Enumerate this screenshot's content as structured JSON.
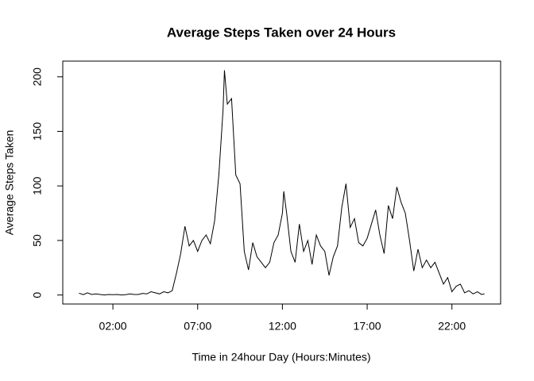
{
  "chart_data": {
    "type": "line",
    "title": "Average Steps Taken over 24 Hours",
    "x_label": "Time in 24hour Day (Hours:Minutes)",
    "y_label": "Average Steps Taken",
    "x": [
      0,
      0.25,
      0.5,
      0.75,
      1,
      1.25,
      1.5,
      1.75,
      2,
      2.25,
      2.5,
      2.75,
      3,
      3.25,
      3.5,
      3.75,
      4,
      4.25,
      4.5,
      4.75,
      5,
      5.25,
      5.5,
      5.75,
      6,
      6.25,
      6.5,
      6.75,
      7,
      7.25,
      7.5,
      7.75,
      8,
      8.25,
      8.5,
      8.58,
      8.75,
      9,
      9.25,
      9.5,
      9.75,
      10,
      10.25,
      10.5,
      10.75,
      11,
      11.25,
      11.5,
      11.75,
      12,
      12.08,
      12.25,
      12.5,
      12.75,
      13,
      13.25,
      13.5,
      13.75,
      14,
      14.25,
      14.5,
      14.75,
      15,
      15.25,
      15.5,
      15.75,
      16,
      16.25,
      16.5,
      16.75,
      17,
      17.25,
      17.5,
      17.75,
      18,
      18.25,
      18.5,
      18.75,
      19,
      19.25,
      19.5,
      19.75,
      20,
      20.25,
      20.5,
      20.75,
      21,
      21.25,
      21.5,
      21.75,
      22,
      22.25,
      22.5,
      22.75,
      23,
      23.25,
      23.5,
      23.75,
      23.92
    ],
    "series": [
      {
        "name": "Average Steps Taken",
        "color": "#000000",
        "values": [
          1.7,
          0.3,
          2,
          0.5,
          1,
          0.5,
          0,
          0.5,
          0.3,
          0.5,
          0,
          0.3,
          1,
          0.5,
          0.5,
          1.5,
          1,
          3,
          2,
          1,
          3,
          2,
          4,
          20,
          38,
          63,
          45,
          50,
          40,
          50,
          55,
          47,
          68,
          110,
          170,
          206,
          175,
          180,
          110,
          102,
          40,
          23,
          48,
          35,
          30,
          25,
          30,
          48,
          55,
          75,
          95,
          75,
          40,
          30,
          65,
          40,
          50,
          28,
          55,
          45,
          40,
          18,
          35,
          45,
          80,
          102,
          62,
          70,
          48,
          45,
          52,
          65,
          78,
          55,
          38,
          82,
          70,
          99,
          85,
          75,
          50,
          22,
          42,
          25,
          32,
          25,
          30,
          20,
          10,
          16,
          3,
          8,
          10,
          2,
          4,
          1,
          3,
          0.5,
          1
        ]
      }
    ],
    "xlim": [
      -0.957,
      24.873
    ],
    "ylim": [
      -8.25,
      214.4
    ],
    "xticks": [
      {
        "value": 2,
        "label": "02:00"
      },
      {
        "value": 7,
        "label": "07:00"
      },
      {
        "value": 12,
        "label": "12:00"
      },
      {
        "value": 17,
        "label": "17:00"
      },
      {
        "value": 22,
        "label": "22:00"
      }
    ],
    "yticks": [
      0,
      50,
      100,
      150,
      200
    ]
  }
}
